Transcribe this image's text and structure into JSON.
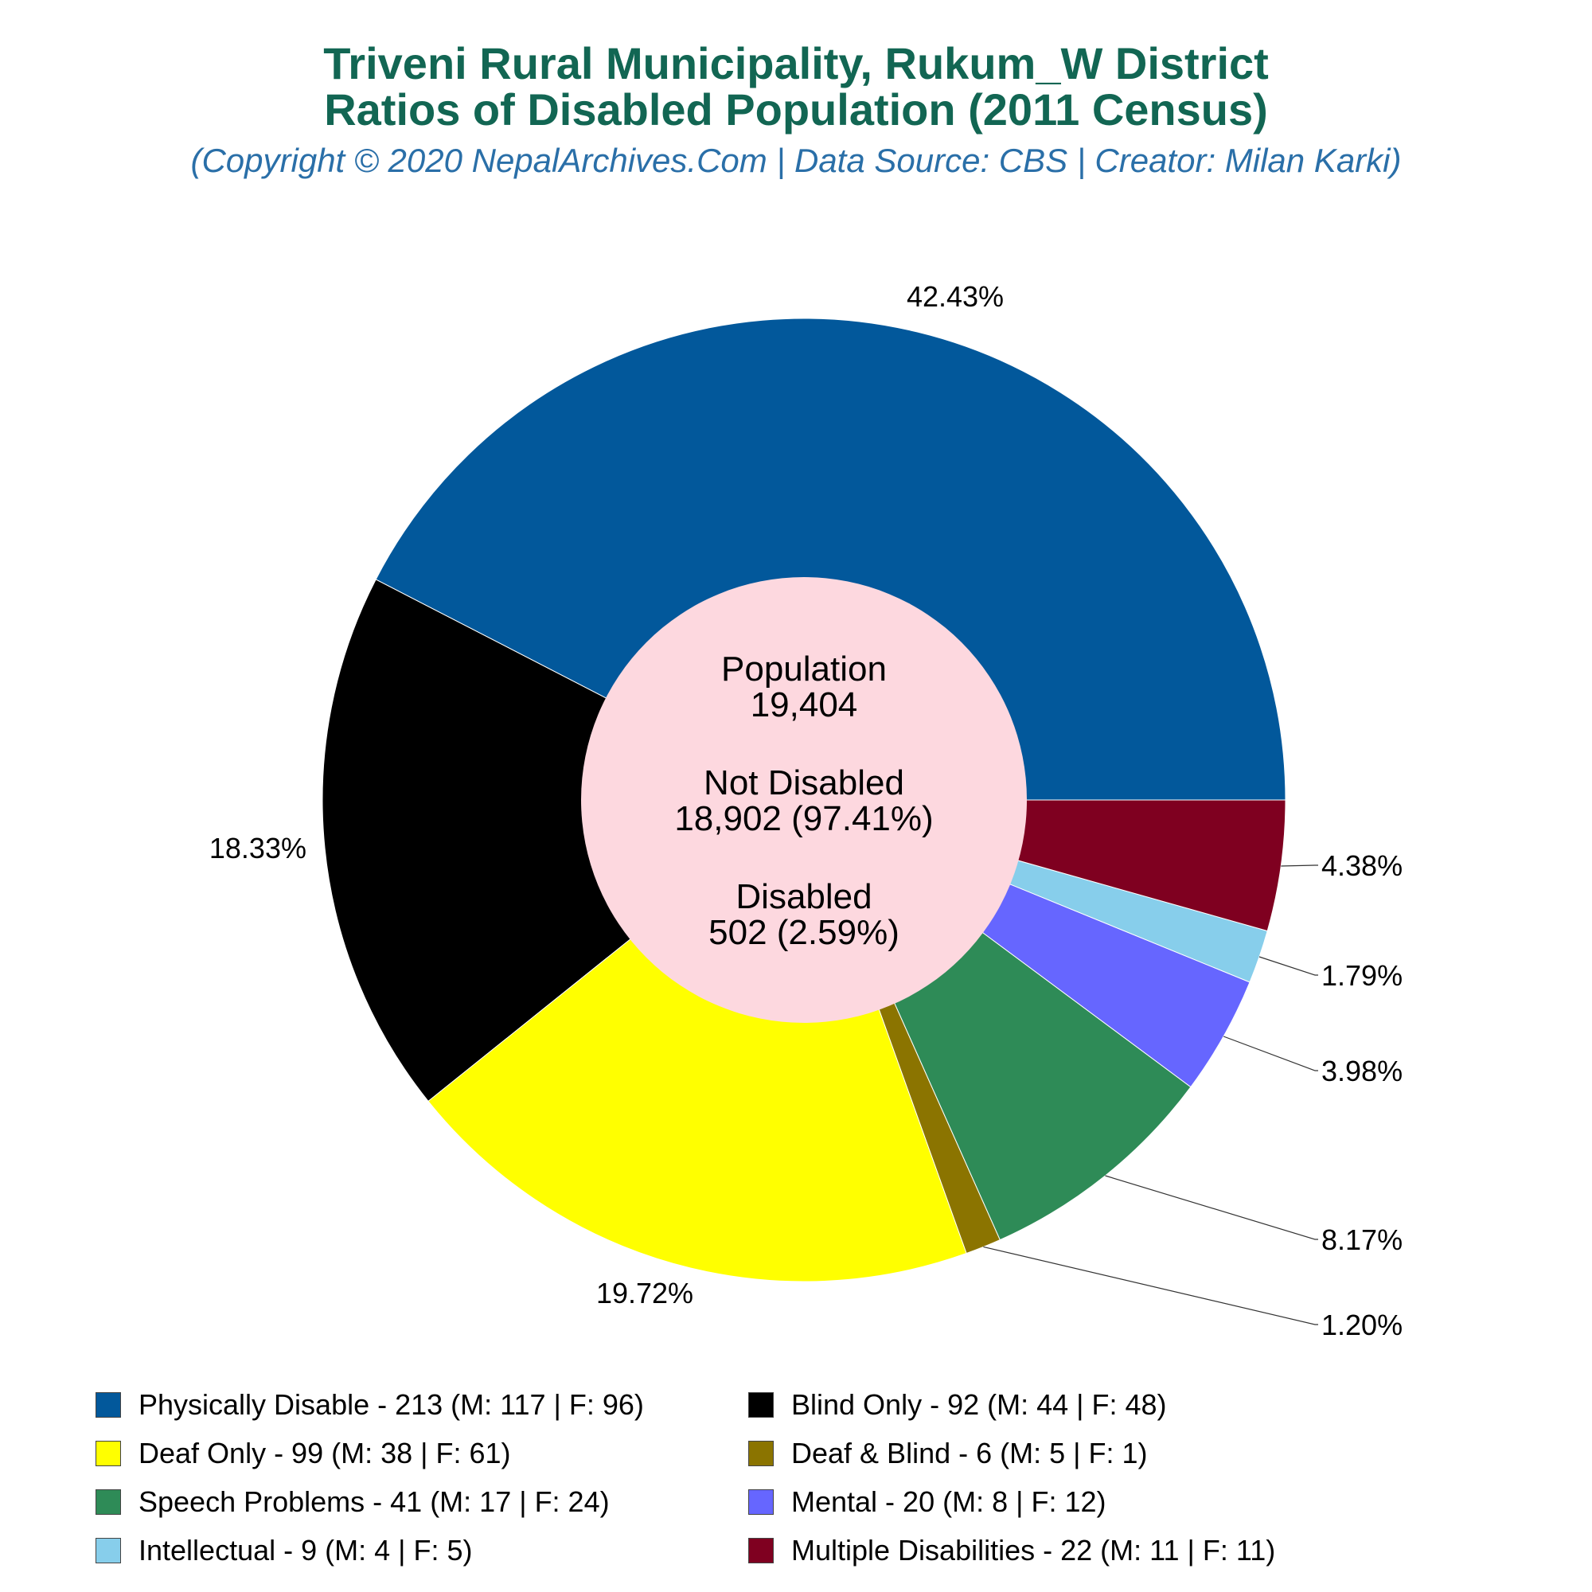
{
  "header": {
    "title_line1": "Triveni Rural Municipality, Rukum_W District",
    "title_line2": "Ratios of Disabled Population (2011 Census)",
    "subtitle": "(Copyright © 2020 NepalArchives.Com | Data Source: CBS | Creator: Milan Karki)"
  },
  "center": {
    "population_label": "Population",
    "population_value": "19,404",
    "not_disabled_label": "Not Disabled",
    "not_disabled_value": "18,902 (97.41%)",
    "disabled_label": "Disabled",
    "disabled_value": "502 (2.59%)",
    "color": "#fdd8df"
  },
  "chart_data": {
    "type": "pie",
    "donut": true,
    "start_angle_deg": 0,
    "direction": "counterclockwise",
    "slices": [
      {
        "name": "Physically Disable",
        "value": 213,
        "male": 117,
        "female": 96,
        "percent_label": "42.43%",
        "color": "#02589b"
      },
      {
        "name": "Blind Only",
        "value": 92,
        "male": 44,
        "female": 48,
        "percent_label": "18.33%",
        "color": "#000000"
      },
      {
        "name": "Deaf Only",
        "value": 99,
        "male": 38,
        "female": 61,
        "percent_label": "19.72%",
        "color": "#ffff00"
      },
      {
        "name": "Deaf & Blind",
        "value": 6,
        "male": 5,
        "female": 1,
        "percent_label": "1.20%",
        "color": "#8b7400"
      },
      {
        "name": "Speech Problems",
        "value": 41,
        "male": 17,
        "female": 24,
        "percent_label": "8.17%",
        "color": "#2e8b57"
      },
      {
        "name": "Mental",
        "value": 20,
        "male": 8,
        "female": 12,
        "percent_label": "3.98%",
        "color": "#6666ff"
      },
      {
        "name": "Intellectual",
        "value": 9,
        "male": 4,
        "female": 5,
        "percent_label": "1.79%",
        "color": "#87ceeb"
      },
      {
        "name": "Multiple Disabilities",
        "value": 22,
        "male": 11,
        "female": 11,
        "percent_label": "4.38%",
        "color": "#7f0020"
      }
    ]
  },
  "legend": {
    "items": [
      {
        "label": "Physically Disable - 213 (M: 117 | F: 96)",
        "color": "#02589b"
      },
      {
        "label": "Blind Only - 92 (M: 44 | F: 48)",
        "color": "#000000"
      },
      {
        "label": "Deaf Only - 99 (M: 38 | F: 61)",
        "color": "#ffff00"
      },
      {
        "label": "Deaf & Blind - 6 (M: 5 | F: 1)",
        "color": "#8b7400"
      },
      {
        "label": "Speech Problems - 41 (M: 17 | F: 24)",
        "color": "#2e8b57"
      },
      {
        "label": "Mental - 20 (M: 8 | F: 12)",
        "color": "#6666ff"
      },
      {
        "label": "Intellectual - 9 (M: 4 | F: 5)",
        "color": "#87ceeb"
      },
      {
        "label": "Multiple Disabilities - 22 (M: 11 | F: 11)",
        "color": "#7f0020"
      }
    ]
  }
}
